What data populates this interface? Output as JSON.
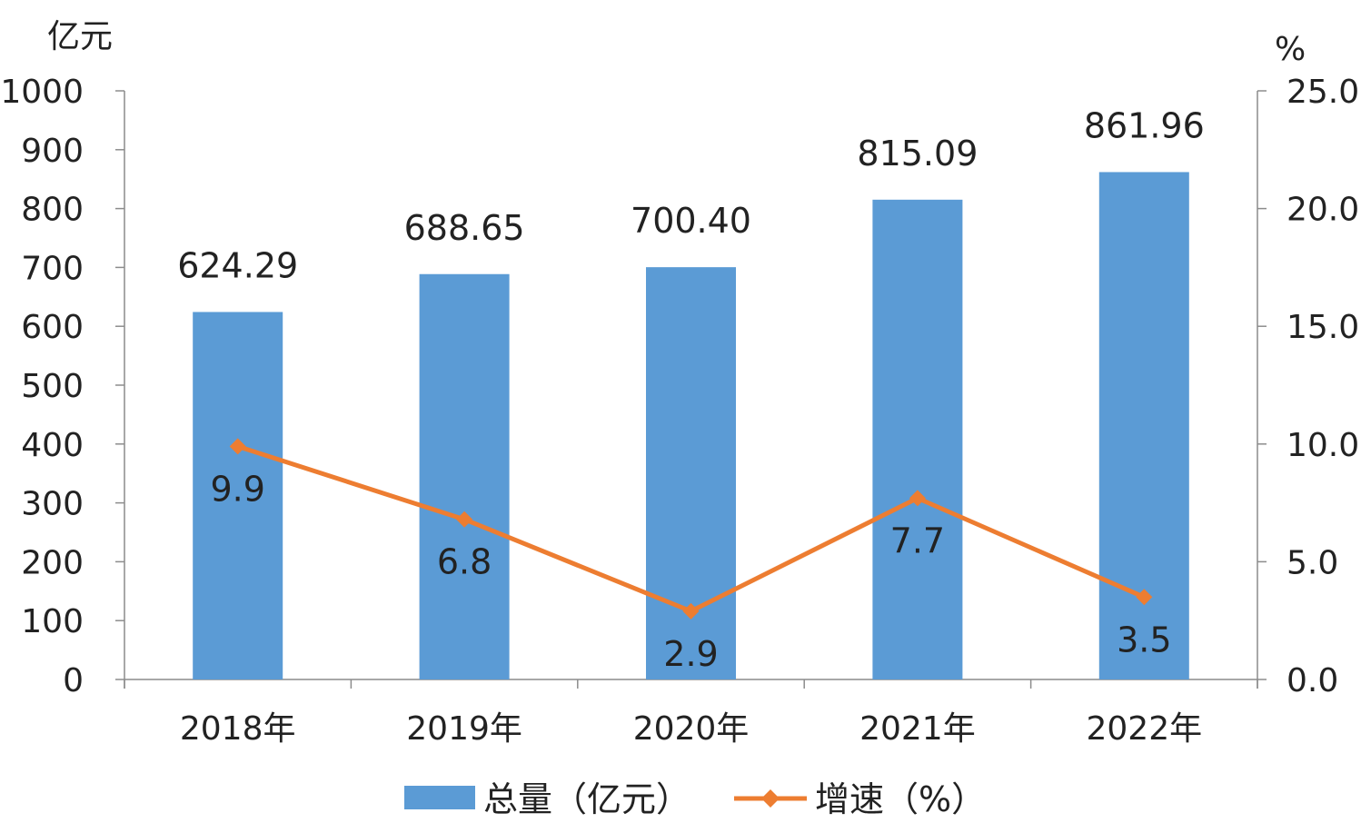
{
  "chart_data": {
    "type": "bar",
    "categories": [
      "2018年",
      "2019年",
      "2020年",
      "2021年",
      "2022年"
    ],
    "series": [
      {
        "name": "总量（亿元）",
        "type": "bar",
        "axis": "left",
        "values": [
          624.29,
          688.65,
          700.4,
          815.09,
          861.96
        ],
        "labels": [
          "624.29",
          "688.65",
          "700.40",
          "815.09",
          "861.96"
        ],
        "color": "#5B9BD5"
      },
      {
        "name": "增速（%）",
        "type": "line",
        "axis": "right",
        "values": [
          9.9,
          6.8,
          2.9,
          7.7,
          3.5
        ],
        "labels": [
          "9.9",
          "6.8",
          "2.9",
          "7.7",
          "3.5"
        ],
        "color": "#ED7D31"
      }
    ],
    "y_left": {
      "unit": "亿元",
      "ylim": [
        0,
        1000
      ],
      "ticks": [
        "0",
        "100",
        "200",
        "300",
        "400",
        "500",
        "600",
        "700",
        "800",
        "900",
        "1000"
      ]
    },
    "y_right": {
      "unit": "%",
      "ylim": [
        0,
        25
      ],
      "ticks": [
        "0.0",
        "5.0",
        "10.0",
        "15.0",
        "20.0",
        "25.0"
      ]
    },
    "grid": false,
    "legend_position": "bottom"
  }
}
